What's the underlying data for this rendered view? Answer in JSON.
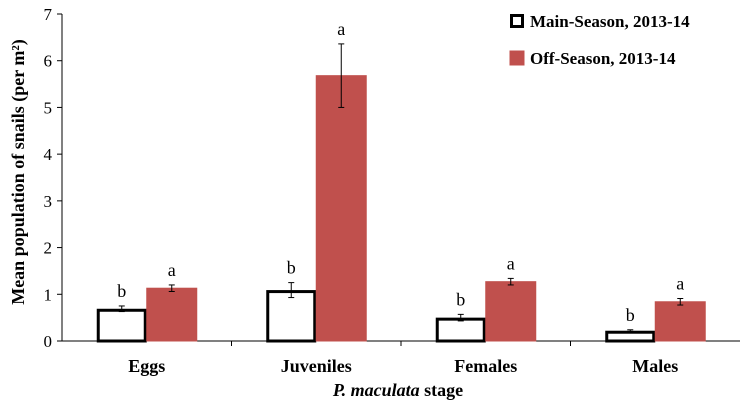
{
  "chart_data": {
    "type": "bar",
    "categories": [
      "Eggs",
      "Juveniles",
      "Females",
      "Males"
    ],
    "series": [
      {
        "name": "Main-Season, 2013-14",
        "color": "#ffffff",
        "stroke": "#000000",
        "values": [
          0.69,
          1.09,
          0.5,
          0.22
        ],
        "error": [
          0.06,
          0.16,
          0.07,
          0.02
        ],
        "letters": [
          "b",
          "b",
          "b",
          "b"
        ]
      },
      {
        "name": "Off-Season, 2013-14",
        "color": "#c0504d",
        "stroke": "#c0504d",
        "values": [
          1.13,
          5.68,
          1.27,
          0.84
        ],
        "error": [
          0.07,
          0.68,
          0.07,
          0.07
        ],
        "letters": [
          "a",
          "a",
          "a",
          "a"
        ]
      }
    ],
    "ylabel": "Mean population of snails (per m²)",
    "xlabel_italic": "P. maculata",
    "xlabel_rest": " stage",
    "ylim": [
      0,
      7
    ],
    "yticks": [
      0,
      1,
      2,
      3,
      4,
      5,
      6,
      7
    ],
    "grid": false,
    "legend_position": "top-right"
  }
}
